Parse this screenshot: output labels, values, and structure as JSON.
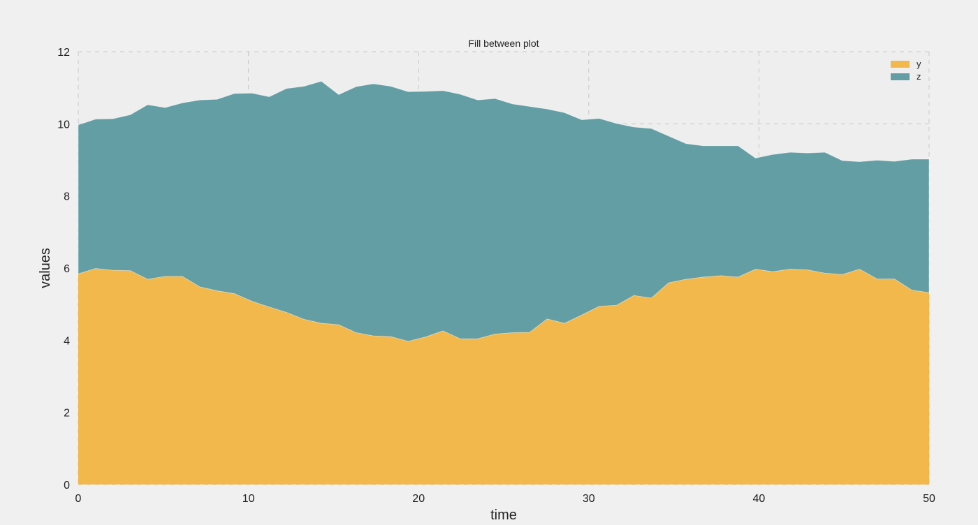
{
  "colors": {
    "background": "#f0f0f0",
    "plot_background": "#eeeeee",
    "y_fill": "#f2b84b",
    "z_fill": "#639ea5",
    "grid": "#c8c8c8"
  },
  "chart_data": {
    "type": "area",
    "title": "Fill between plot",
    "xlabel": "time",
    "ylabel": "values",
    "xlim": [
      0,
      50
    ],
    "ylim": [
      0,
      12
    ],
    "xticks": [
      0,
      10,
      20,
      30,
      40,
      50
    ],
    "yticks": [
      0,
      2,
      4,
      6,
      8,
      10,
      12
    ],
    "grid": true,
    "legend_position": "upper right",
    "stacked": true,
    "x_description": "50 evenly spaced points from 0 to 50",
    "series": [
      {
        "name": "y",
        "color": "#f2b84b",
        "fill_from": 0,
        "values": [
          5.84,
          5.99,
          5.94,
          5.93,
          5.69,
          5.77,
          5.77,
          5.48,
          5.37,
          5.29,
          5.08,
          4.92,
          4.77,
          4.58,
          4.47,
          4.43,
          4.21,
          4.12,
          4.1,
          3.97,
          4.09,
          4.26,
          4.04,
          4.04,
          4.17,
          4.21,
          4.22,
          4.59,
          4.47,
          4.7,
          4.94,
          4.97,
          5.24,
          5.17,
          5.59,
          5.69,
          5.75,
          5.79,
          5.75,
          5.97,
          5.9,
          5.97,
          5.95,
          5.86,
          5.82,
          5.97,
          5.7,
          5.7,
          5.39,
          5.32
        ]
      },
      {
        "name": "z",
        "color": "#639ea5",
        "fill_from": "y",
        "top_values": [
          9.97,
          10.13,
          10.14,
          10.25,
          10.53,
          10.45,
          10.58,
          10.66,
          10.68,
          10.84,
          10.85,
          10.75,
          10.98,
          11.04,
          11.18,
          10.81,
          11.03,
          11.11,
          11.04,
          10.89,
          10.9,
          10.92,
          10.82,
          10.66,
          10.7,
          10.55,
          10.48,
          10.41,
          10.31,
          10.11,
          10.15,
          10.01,
          9.91,
          9.87,
          9.66,
          9.45,
          9.39,
          9.39,
          9.39,
          9.05,
          9.15,
          9.21,
          9.19,
          9.21,
          8.98,
          8.95,
          8.99,
          8.96,
          9.02,
          9.02
        ]
      }
    ]
  }
}
